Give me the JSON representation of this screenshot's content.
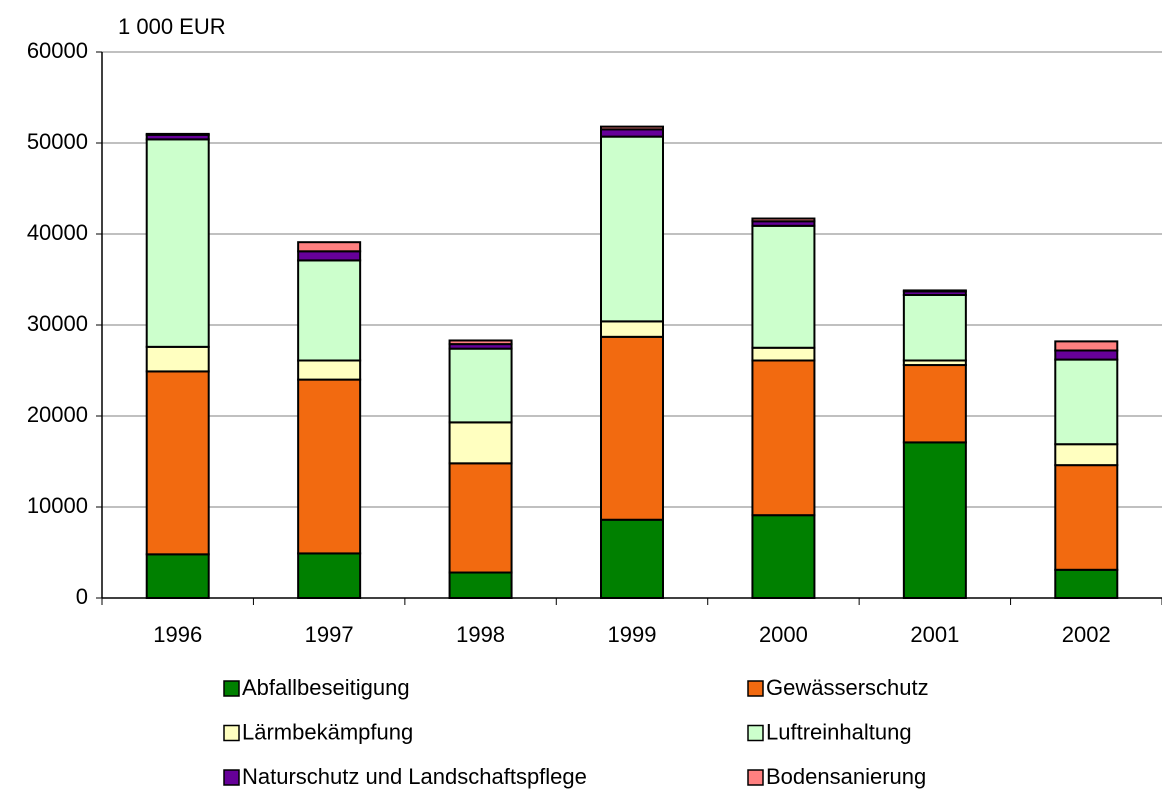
{
  "chart_data": {
    "type": "stacked_bar",
    "y_label": "1 000 EUR",
    "categories": [
      "1996",
      "1997",
      "1998",
      "1999",
      "2000",
      "2001",
      "2002"
    ],
    "series": [
      {
        "name": "Abfallbeseitigung",
        "color": "#008000",
        "values": [
          4800,
          4900,
          2800,
          8600,
          9100,
          17100,
          3100
        ]
      },
      {
        "name": "Gewässerschutz",
        "color": "#f26a10",
        "values": [
          20100,
          19100,
          12000,
          20100,
          17000,
          8500,
          11500
        ]
      },
      {
        "name": "Lärmbekämpfung",
        "color": "#ffffc0",
        "values": [
          2700,
          2100,
          4500,
          1700,
          1400,
          500,
          2300
        ]
      },
      {
        "name": "Luftreinhaltung",
        "color": "#ccffcc",
        "values": [
          22800,
          11000,
          8100,
          20300,
          13400,
          7200,
          9300
        ]
      },
      {
        "name": "Naturschutz und Landschaftspflege",
        "color": "#660099",
        "values": [
          500,
          1000,
          500,
          800,
          500,
          400,
          1000
        ]
      },
      {
        "name": "Bodensanierung",
        "color": "#ff8080",
        "values": [
          100,
          1000,
          400,
          300,
          300,
          100,
          1000
        ]
      }
    ],
    "ylim": [
      0,
      60000
    ],
    "yticks": [
      0,
      10000,
      20000,
      30000,
      40000,
      50000,
      60000
    ],
    "grid": true,
    "legend": "bottom"
  }
}
